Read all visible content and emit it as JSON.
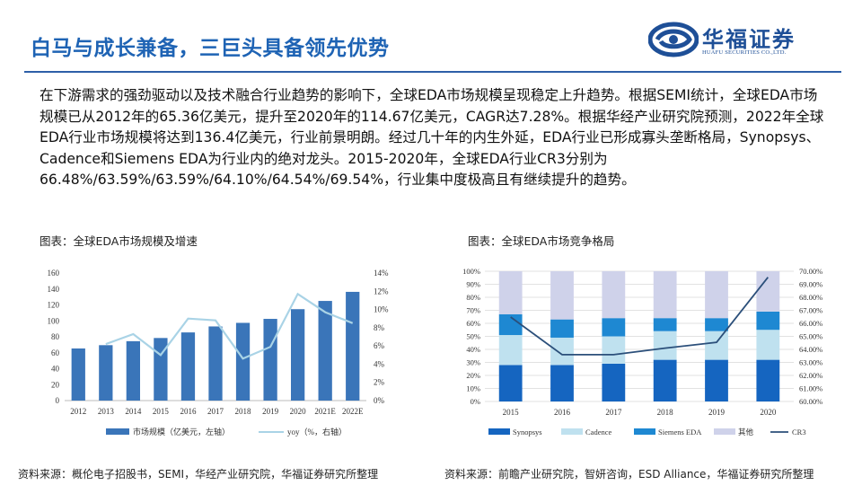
{
  "header": {
    "title": "白马与成长兼备，三巨头具备领先优势",
    "logo_cn": "华福证券",
    "logo_en": "HUAFU SECURITIES CO.,LTD."
  },
  "body": {
    "paragraph": "在下游需求的强劲驱动以及技术融合行业趋势的影响下，全球EDA市场规模呈现稳定上升趋势。根据SEMI统计，全球EDA市场规模已从2012年的65.36亿美元，提升至2020年的114.67亿美元，CAGR达7.28%。根据华经产业研究院预测，2022年全球EDA行业市场规模将达到136.4亿美元，行业前景明朗。经过几十年的内生外延，EDA行业已形成寡头垄断格局，Synopsys、Cadence和Siemens EDA为行业内的绝对龙头。2015-2020年，全球EDA行业CR3分别为66.48%/63.59%/63.59%/64.10%/64.54%/69.54%，行业集中度极高且有继续提升的趋势。"
  },
  "captions": {
    "left": "图表：全球EDA市场规模及增速",
    "right": "图表：全球EDA市场竞争格局"
  },
  "sources": {
    "left": "资料来源：概伦电子招股书，SEMI，华经产业研究院，华福证券研究所整理",
    "right": "资料来源：前瞻产业研究院，智妍咨询，ESD Alliance，华福证券研究所整理"
  },
  "colors": {
    "title": "#1e63b4",
    "bar": "#3a75b9",
    "yoy_line": "#a9d3e6",
    "synopsys": "#1565c0",
    "cadence": "#bfe1ef",
    "siemens": "#1e88d2",
    "others": "#cfd2ea",
    "cr3": "#2b4f7a"
  },
  "chart_data": [
    {
      "type": "bar",
      "categories": [
        "2012",
        "2013",
        "2014",
        "2015",
        "2016",
        "2017",
        "2018",
        "2019",
        "2020",
        "2021E",
        "2022E"
      ],
      "series": [
        {
          "name": "市场规模（亿美元，左轴）",
          "type": "bar",
          "axis": "left",
          "values": [
            65.36,
            69.5,
            74.5,
            78.5,
            85.5,
            93.0,
            97.5,
            102.5,
            114.67,
            125.0,
            136.4
          ]
        },
        {
          "name": "yoy（%，右轴）",
          "type": "line",
          "axis": "right",
          "values": [
            null,
            6.2,
            7.3,
            5.0,
            9.0,
            8.8,
            4.6,
            5.9,
            11.7,
            9.7,
            8.5
          ]
        }
      ],
      "left_axis": {
        "min": 0,
        "max": 160,
        "ticks": [
          "0",
          "20",
          "40",
          "60",
          "80",
          "100",
          "120",
          "140",
          "160"
        ]
      },
      "right_axis": {
        "min": 0,
        "max": 14,
        "ticks": [
          "0%",
          "2%",
          "4%",
          "6%",
          "8%",
          "10%",
          "12%",
          "14%"
        ]
      },
      "grid": false,
      "legend": "bottom"
    },
    {
      "type": "bar",
      "stacked": true,
      "categories": [
        "2015",
        "2016",
        "2017",
        "2018",
        "2019",
        "2020"
      ],
      "series": [
        {
          "name": "Synopsys",
          "values": [
            28,
            28,
            29,
            32,
            32,
            32
          ]
        },
        {
          "name": "Cadence",
          "values": [
            23,
            21,
            21,
            22,
            22,
            23
          ]
        },
        {
          "name": "Siemens EDA",
          "values": [
            16,
            14,
            14,
            10,
            10,
            14
          ]
        },
        {
          "name": "其他",
          "values": [
            33,
            37,
            36,
            36,
            36,
            31
          ]
        },
        {
          "name": "CR3",
          "type": "line",
          "axis": "right",
          "values": [
            66.48,
            63.59,
            63.59,
            64.1,
            64.54,
            69.54
          ]
        }
      ],
      "left_axis": {
        "min": 0,
        "max": 100,
        "ticks": [
          "0%",
          "10%",
          "20%",
          "30%",
          "40%",
          "50%",
          "60%",
          "70%",
          "80%",
          "90%",
          "100%"
        ]
      },
      "right_axis": {
        "min": 60,
        "max": 70,
        "ticks": [
          "60.00%",
          "61.00%",
          "62.00%",
          "63.00%",
          "64.00%",
          "65.00%",
          "66.00%",
          "67.00%",
          "68.00%",
          "69.00%",
          "70.00%"
        ]
      },
      "grid": true,
      "legend": "bottom"
    }
  ]
}
